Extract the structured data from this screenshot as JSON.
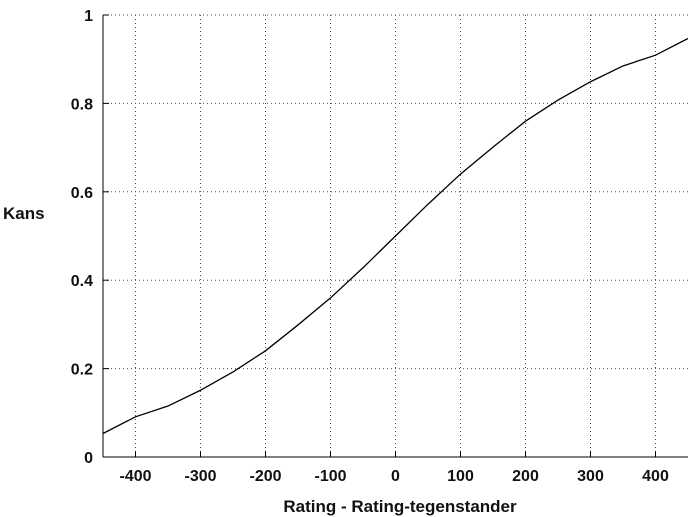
{
  "chart_data": {
    "type": "line",
    "title": "",
    "xlabel": "Rating - Rating-tegenstander",
    "ylabel": "Kans",
    "xlim": [
      -450,
      450
    ],
    "ylim": [
      0,
      1
    ],
    "xticks": [
      -400,
      -300,
      -200,
      -100,
      0,
      100,
      200,
      300,
      400
    ],
    "xtick_labels": [
      "-400",
      "-300",
      "-200",
      "-100",
      "0",
      "100",
      "200",
      "300",
      "400"
    ],
    "yticks": [
      0,
      0.2,
      0.4,
      0.6,
      0.8,
      1
    ],
    "ytick_labels": [
      "0",
      "0.2",
      "0.4",
      "0.6",
      "0.8",
      "1"
    ],
    "grid": true,
    "colors": {
      "line": "#000000",
      "grid": "#3a3acc",
      "axis": "#000000"
    },
    "series": [
      {
        "x": [
          -450,
          -400,
          -350,
          -300,
          -250,
          -200,
          -150,
          -100,
          -50,
          0,
          50,
          100,
          150,
          200,
          250,
          300,
          350,
          400,
          450
        ],
        "y": [
          0.0532,
          0.0909,
          0.1153,
          0.151,
          0.1925,
          0.2403,
          0.2988,
          0.3599,
          0.4281,
          0.5,
          0.5719,
          0.6401,
          0.7012,
          0.7597,
          0.8075,
          0.849,
          0.8847,
          0.9091,
          0.9468
        ]
      }
    ]
  }
}
